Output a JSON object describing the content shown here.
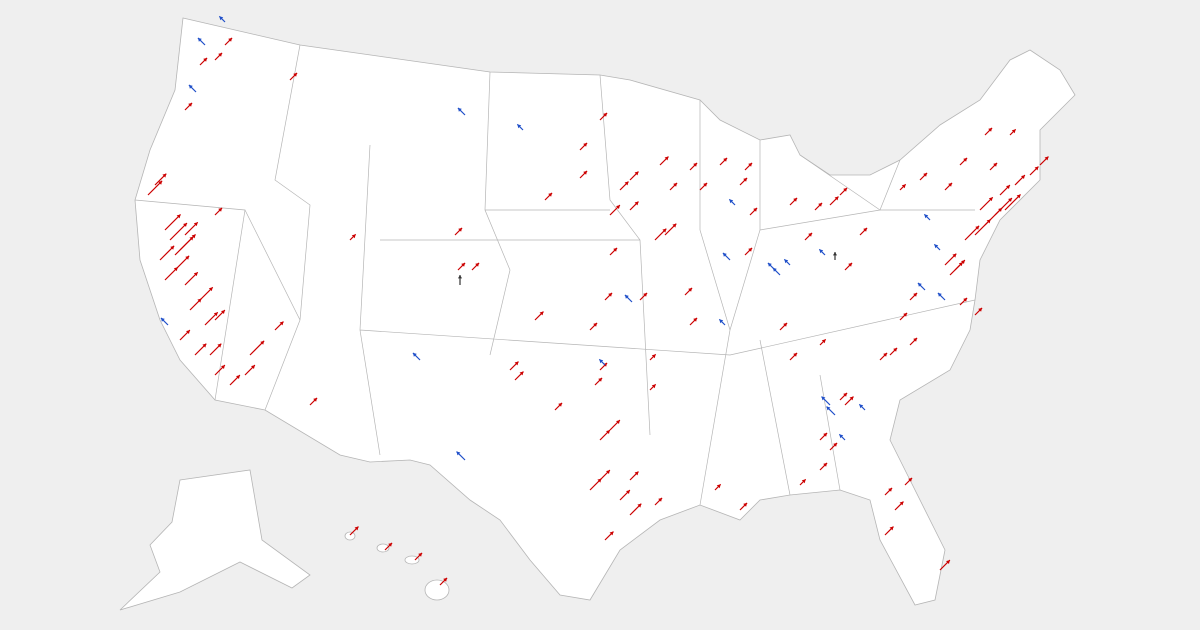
{
  "map": {
    "background": "#efefef",
    "land": "#ffffff",
    "border": "#b5b5b5",
    "arrow_colors": {
      "republican_shift": "#cc0000",
      "democratic_shift": "#1f4fc9",
      "other_shift": "#333333"
    }
  }
}
